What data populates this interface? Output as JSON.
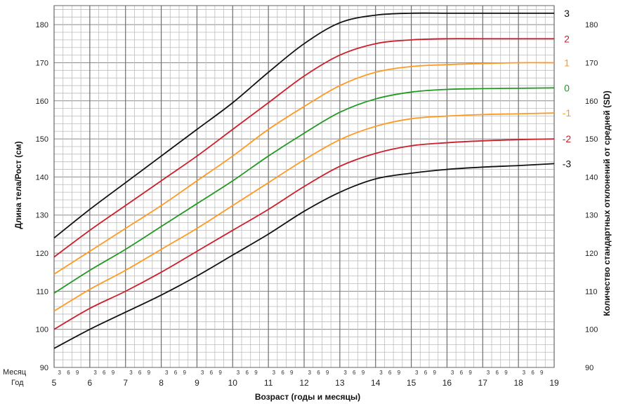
{
  "chart_data": {
    "type": "line",
    "xlabel": "Возраст (годы и месяцы)",
    "ylabel": "Длина тела/Рост (см)",
    "ylabel_right": "Количество стандартных отклонений от средней (SD)",
    "row_label_month": "Месяц",
    "row_label_year": "Год",
    "xlim": [
      5,
      19
    ],
    "ylim": [
      90,
      185
    ],
    "y_ticks": [
      90,
      100,
      110,
      120,
      130,
      140,
      150,
      160,
      170,
      180
    ],
    "x_ticks": [
      5,
      6,
      7,
      8,
      9,
      10,
      11,
      12,
      13,
      14,
      15,
      16,
      17,
      18,
      19
    ],
    "month_ticks": [
      "3",
      "6",
      "9"
    ],
    "grid": true,
    "x": [
      5,
      6,
      7,
      8,
      9,
      10,
      11,
      12,
      13,
      14,
      15,
      16,
      17,
      18,
      19
    ],
    "series": [
      {
        "name": "3",
        "color": "#111111",
        "values": [
          124.0,
          131.5,
          138.5,
          145.5,
          152.5,
          159.5,
          167.5,
          175.0,
          180.5,
          182.5,
          183.0,
          183.0,
          183.0,
          183.0,
          183.0
        ]
      },
      {
        "name": "2",
        "color": "#cc1f2a",
        "values": [
          119.0,
          126.0,
          132.5,
          139.0,
          145.5,
          152.5,
          159.5,
          166.5,
          172.0,
          175.0,
          176.0,
          176.3,
          176.3,
          176.3,
          176.3
        ]
      },
      {
        "name": "1",
        "color": "#ff9922",
        "values": [
          114.5,
          120.5,
          126.5,
          132.5,
          139.0,
          145.5,
          152.5,
          158.5,
          164.0,
          167.5,
          169.0,
          169.5,
          169.8,
          170.0,
          170.0
        ]
      },
      {
        "name": "0",
        "color": "#229922",
        "values": [
          109.5,
          115.5,
          121.0,
          127.0,
          133.0,
          139.0,
          145.5,
          151.5,
          157.0,
          160.5,
          162.3,
          163.0,
          163.2,
          163.3,
          163.4
        ]
      },
      {
        "name": "-1",
        "color": "#ff9922",
        "values": [
          104.8,
          110.5,
          115.5,
          121.0,
          126.5,
          132.5,
          138.5,
          144.5,
          149.8,
          153.3,
          155.3,
          156.0,
          156.4,
          156.6,
          156.8
        ]
      },
      {
        "name": "-2",
        "color": "#cc1f2a",
        "values": [
          100.0,
          105.5,
          110.0,
          115.0,
          120.5,
          126.0,
          131.5,
          137.5,
          142.8,
          146.2,
          148.2,
          149.0,
          149.5,
          149.8,
          150.0
        ]
      },
      {
        "name": "-3",
        "color": "#111111",
        "values": [
          95.0,
          100.0,
          104.5,
          109.0,
          114.0,
          119.5,
          125.0,
          131.0,
          136.0,
          139.5,
          141.0,
          142.0,
          142.6,
          143.0,
          143.5
        ]
      }
    ]
  }
}
